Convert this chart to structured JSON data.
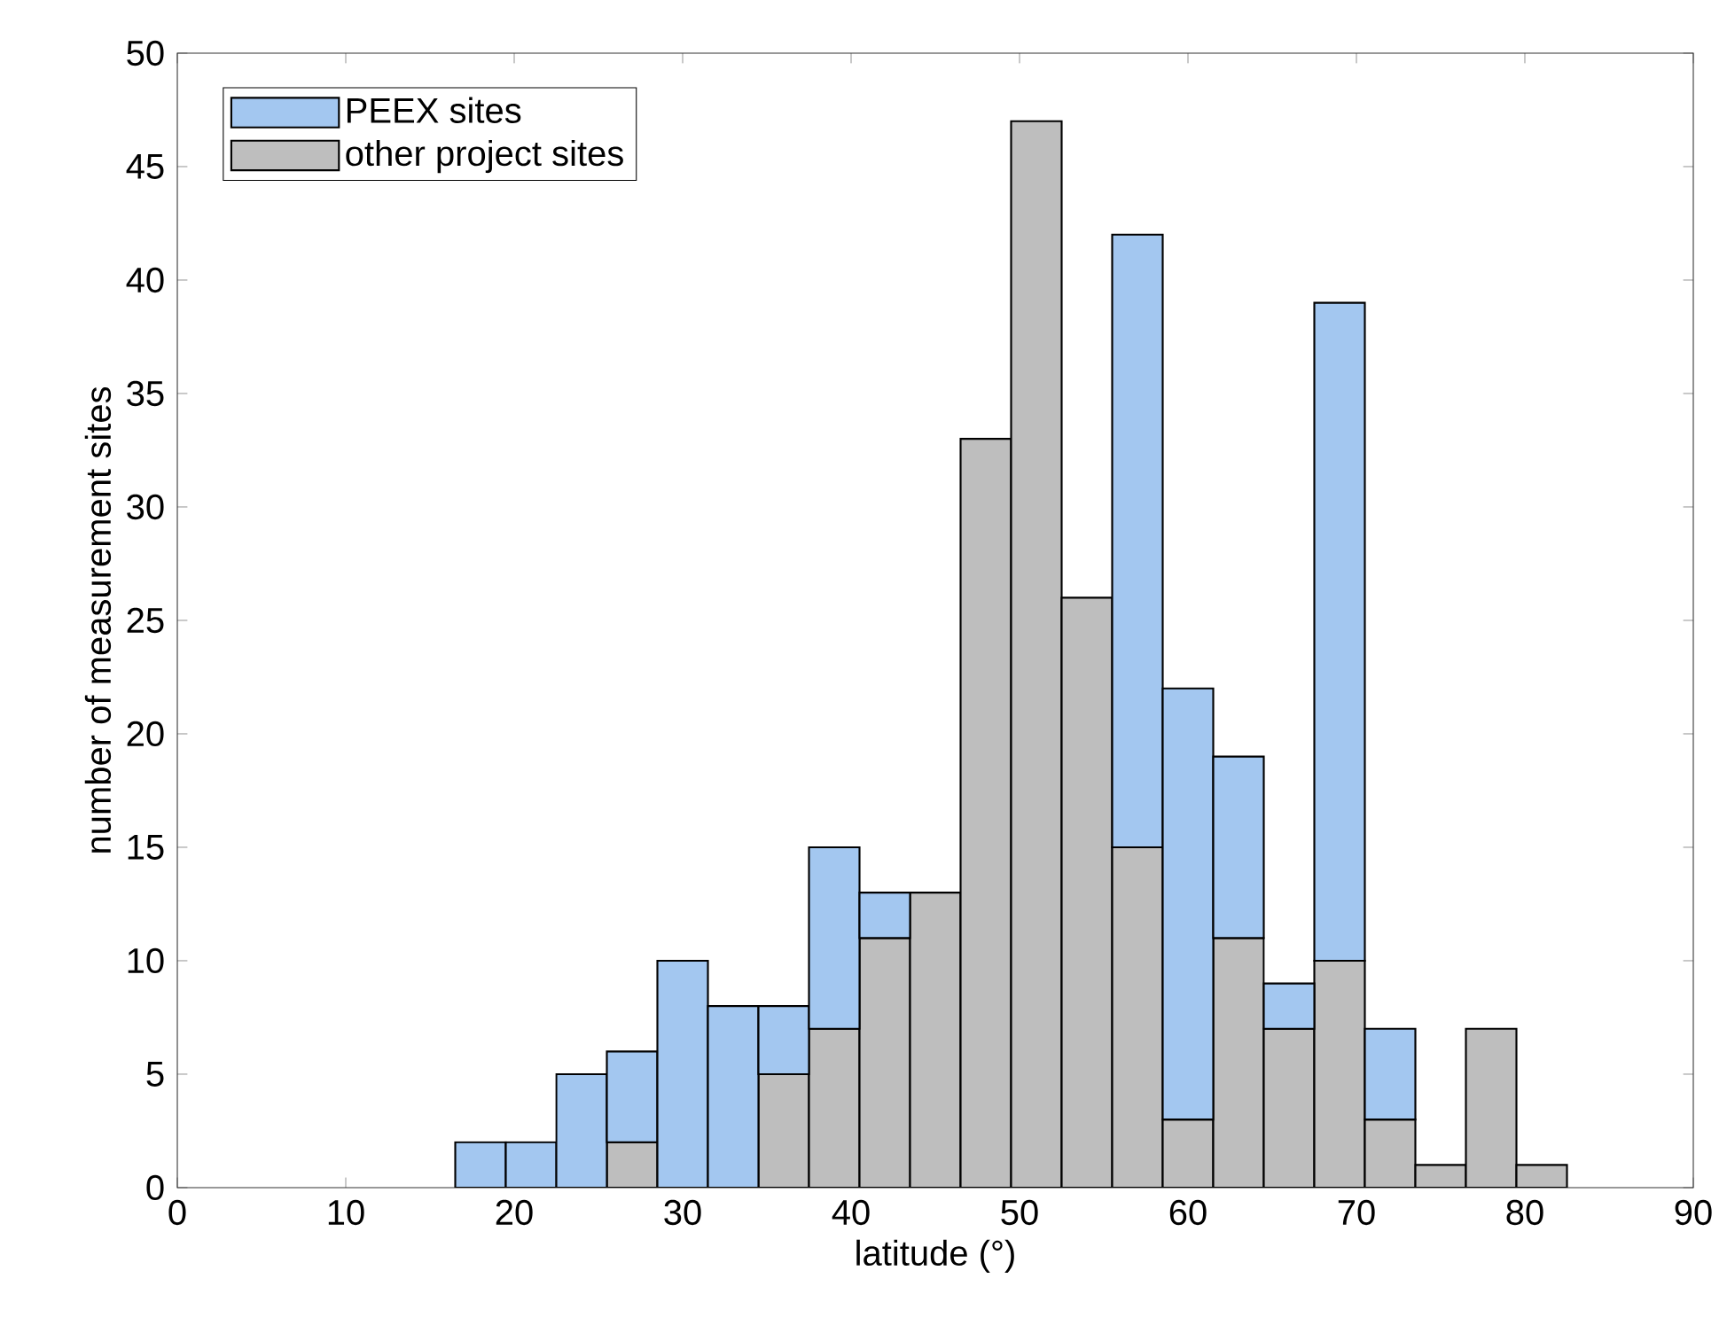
{
  "chart_data": {
    "type": "bar",
    "xlabel": "latitude (°)",
    "ylabel": "number of measurement sites",
    "x": [
      18,
      21,
      24,
      27,
      30,
      33,
      36,
      39,
      42,
      45,
      48,
      51,
      54,
      57,
      60,
      63,
      66,
      69,
      72,
      75,
      78,
      81
    ],
    "series": [
      {
        "name": "other project sites",
        "color": "#bebebe",
        "values": [
          0,
          0,
          0,
          2,
          0,
          0,
          5,
          7,
          11,
          13,
          33,
          47,
          26,
          15,
          3,
          11,
          7,
          10,
          3,
          1,
          7,
          1
        ]
      },
      {
        "name": "PEEX sites",
        "color": "#a3c7f0",
        "values": [
          2,
          2,
          5,
          4,
          10,
          8,
          3,
          8,
          2,
          0,
          0,
          0,
          0,
          27,
          19,
          8,
          2,
          29,
          4,
          0,
          0,
          0
        ]
      }
    ],
    "stacked": true,
    "xlim": [
      0,
      90
    ],
    "xticks": [
      0,
      10,
      20,
      30,
      40,
      50,
      60,
      70,
      80,
      90
    ],
    "ylim": [
      0,
      50
    ],
    "yticks": [
      0,
      5,
      10,
      15,
      20,
      25,
      30,
      35,
      40,
      45,
      50
    ],
    "legend": "top left",
    "grid": false
  }
}
